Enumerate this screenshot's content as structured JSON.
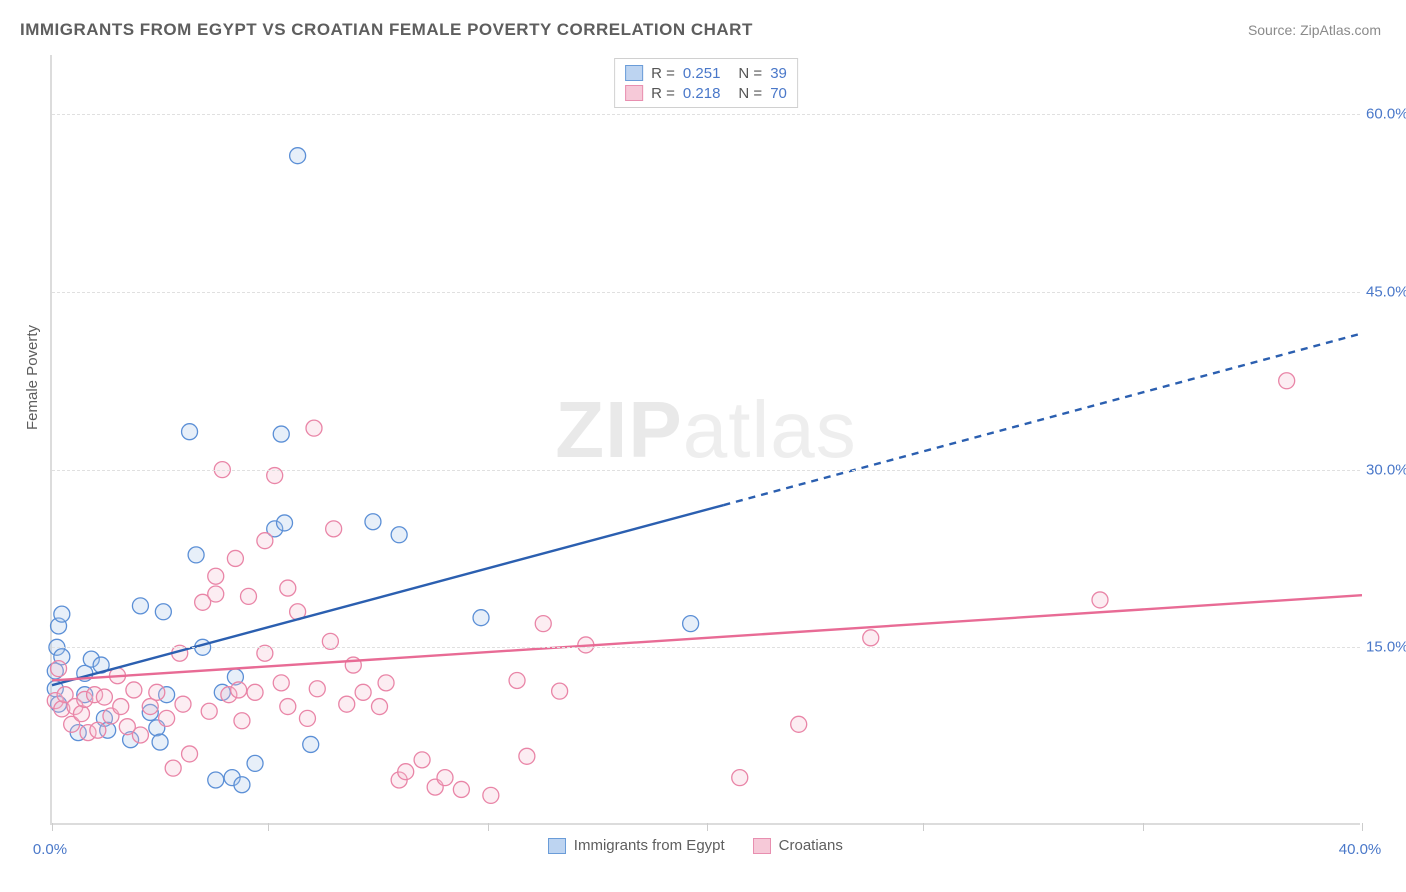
{
  "title": "IMMIGRANTS FROM EGYPT VS CROATIAN FEMALE POVERTY CORRELATION CHART",
  "source_label": "Source: ZipAtlas.com",
  "watermark": {
    "part1": "ZIP",
    "part2": "atlas"
  },
  "ylabel": "Female Poverty",
  "chart": {
    "type": "scatter-with-regression",
    "background_color": "#ffffff",
    "grid_color": "#e0e0e0",
    "axis_color": "#dcdcdc",
    "tick_label_color": "#4a78c9",
    "title_color": "#5e5e5e",
    "title_fontsize": 17,
    "label_fontsize": 15,
    "xlim": [
      0,
      40
    ],
    "ylim": [
      0,
      65
    ],
    "xticks": [
      0,
      6.6,
      13.3,
      20,
      26.6,
      33.3,
      40
    ],
    "xtick_labels_shown": {
      "0": "0.0%",
      "40": "40.0%"
    },
    "yticks": [
      15,
      30,
      45,
      60
    ],
    "ytick_labels": [
      "15.0%",
      "30.0%",
      "45.0%",
      "60.0%"
    ],
    "marker_radius": 8,
    "marker_fill_opacity": 0.28,
    "marker_stroke_width": 1.3,
    "series": [
      {
        "name": "Immigrants from Egypt",
        "color_stroke": "#5b8fd6",
        "color_fill": "#a9c5ea",
        "legend_swatch_fill": "#bdd4f1",
        "legend_swatch_border": "#6a9cd8",
        "R": "0.251",
        "N": "39",
        "regression": {
          "solid": {
            "x1": 0,
            "y1": 11.8,
            "x2": 20.5,
            "y2": 27.0
          },
          "dashed": {
            "x1": 20.5,
            "y1": 27.0,
            "x2": 40.0,
            "y2": 41.5
          },
          "stroke": "#2b5fb0",
          "width": 2.4,
          "dash": "7 6"
        },
        "points": [
          [
            0.1,
            11.5
          ],
          [
            0.1,
            13.0
          ],
          [
            0.15,
            15.0
          ],
          [
            0.2,
            16.8
          ],
          [
            0.2,
            10.2
          ],
          [
            0.3,
            17.8
          ],
          [
            0.3,
            14.2
          ],
          [
            0.8,
            7.8
          ],
          [
            1.0,
            11.0
          ],
          [
            1.0,
            12.8
          ],
          [
            1.2,
            14.0
          ],
          [
            1.5,
            13.5
          ],
          [
            1.6,
            9.0
          ],
          [
            1.7,
            8.0
          ],
          [
            2.4,
            7.2
          ],
          [
            2.7,
            18.5
          ],
          [
            3.0,
            9.5
          ],
          [
            3.2,
            8.2
          ],
          [
            3.3,
            7.0
          ],
          [
            3.4,
            18.0
          ],
          [
            3.5,
            11.0
          ],
          [
            4.2,
            33.2
          ],
          [
            4.4,
            22.8
          ],
          [
            4.6,
            15.0
          ],
          [
            5.0,
            3.8
          ],
          [
            5.2,
            11.2
          ],
          [
            5.5,
            4.0
          ],
          [
            5.6,
            12.5
          ],
          [
            5.8,
            3.4
          ],
          [
            6.2,
            5.2
          ],
          [
            6.8,
            25.0
          ],
          [
            7.0,
            33.0
          ],
          [
            7.1,
            25.5
          ],
          [
            7.5,
            56.5
          ],
          [
            7.9,
            6.8
          ],
          [
            9.8,
            25.6
          ],
          [
            10.6,
            24.5
          ],
          [
            13.1,
            17.5
          ],
          [
            19.5,
            17.0
          ]
        ]
      },
      {
        "name": "Croatians",
        "color_stroke": "#e985a7",
        "color_fill": "#f6bfd1",
        "legend_swatch_fill": "#f6c9d8",
        "legend_swatch_border": "#e88fb0",
        "R": "0.218",
        "N": "70",
        "regression": {
          "solid": {
            "x1": 0,
            "y1": 12.2,
            "x2": 40.0,
            "y2": 19.4
          },
          "dashed": null,
          "stroke": "#e86b95",
          "width": 2.4,
          "dash": null
        },
        "points": [
          [
            0.1,
            10.5
          ],
          [
            0.2,
            13.2
          ],
          [
            0.3,
            9.8
          ],
          [
            0.4,
            11.0
          ],
          [
            0.6,
            8.5
          ],
          [
            0.7,
            10.0
          ],
          [
            0.9,
            9.4
          ],
          [
            1.0,
            10.6
          ],
          [
            1.1,
            7.8
          ],
          [
            1.3,
            11.0
          ],
          [
            1.4,
            8.0
          ],
          [
            1.6,
            10.8
          ],
          [
            1.8,
            9.2
          ],
          [
            2.0,
            12.6
          ],
          [
            2.1,
            10.0
          ],
          [
            2.3,
            8.3
          ],
          [
            2.5,
            11.4
          ],
          [
            2.7,
            7.6
          ],
          [
            3.0,
            10.0
          ],
          [
            3.2,
            11.2
          ],
          [
            3.5,
            9.0
          ],
          [
            3.7,
            4.8
          ],
          [
            3.9,
            14.5
          ],
          [
            4.0,
            10.2
          ],
          [
            4.2,
            6.0
          ],
          [
            4.6,
            18.8
          ],
          [
            4.8,
            9.6
          ],
          [
            5.0,
            21.0
          ],
          [
            5.0,
            19.5
          ],
          [
            5.2,
            30.0
          ],
          [
            5.4,
            11.0
          ],
          [
            5.6,
            22.5
          ],
          [
            5.7,
            11.4
          ],
          [
            5.8,
            8.8
          ],
          [
            6.0,
            19.3
          ],
          [
            6.2,
            11.2
          ],
          [
            6.5,
            14.5
          ],
          [
            6.5,
            24.0
          ],
          [
            6.8,
            29.5
          ],
          [
            7.0,
            12.0
          ],
          [
            7.2,
            10.0
          ],
          [
            7.2,
            20.0
          ],
          [
            7.5,
            18.0
          ],
          [
            7.8,
            9.0
          ],
          [
            8.0,
            33.5
          ],
          [
            8.1,
            11.5
          ],
          [
            8.5,
            15.5
          ],
          [
            8.6,
            25.0
          ],
          [
            9.0,
            10.2
          ],
          [
            9.2,
            13.5
          ],
          [
            9.5,
            11.2
          ],
          [
            10.0,
            10.0
          ],
          [
            10.2,
            12.0
          ],
          [
            10.6,
            3.8
          ],
          [
            10.8,
            4.5
          ],
          [
            11.3,
            5.5
          ],
          [
            11.7,
            3.2
          ],
          [
            12.0,
            4.0
          ],
          [
            12.5,
            3.0
          ],
          [
            13.4,
            2.5
          ],
          [
            14.2,
            12.2
          ],
          [
            14.5,
            5.8
          ],
          [
            15.0,
            17.0
          ],
          [
            15.5,
            11.3
          ],
          [
            16.3,
            15.2
          ],
          [
            21.0,
            4.0
          ],
          [
            22.8,
            8.5
          ],
          [
            25.0,
            15.8
          ],
          [
            32.0,
            19.0
          ],
          [
            37.7,
            37.5
          ]
        ]
      }
    ],
    "legend_bottom_labels": [
      "Immigrants from Egypt",
      "Croatians"
    ]
  }
}
